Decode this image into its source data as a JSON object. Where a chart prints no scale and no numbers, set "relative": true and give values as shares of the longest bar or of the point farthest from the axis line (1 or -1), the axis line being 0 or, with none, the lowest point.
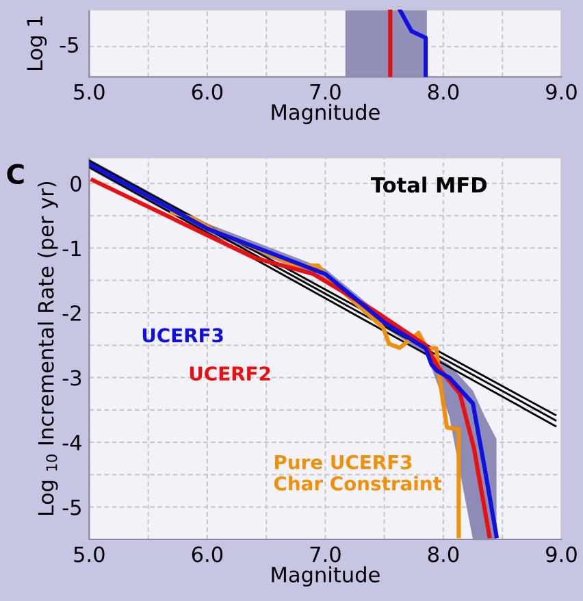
{
  "chart_data": [
    {
      "type": "line",
      "ylabel": "Log 1",
      "xlabel": "Magnitude",
      "xlim": [
        5.0,
        9.0
      ],
      "relative": true,
      "annotations": [
        "-5"
      ],
      "xticks": [
        {
          "value": 5.0,
          "label": "5.0"
        },
        {
          "value": 5.5,
          "label": null
        },
        {
          "value": 6.0,
          "label": "6.0"
        },
        {
          "value": 6.5,
          "label": null
        },
        {
          "value": 7.0,
          "label": "7.0"
        },
        {
          "value": 8.0,
          "label": "8.0"
        },
        {
          "value": 8.5,
          "label": null
        },
        {
          "value": 9.0,
          "label": "9.0"
        }
      ],
      "grid": true,
      "bands": [
        {
          "axis": "x",
          "from": 7.17,
          "to": 7.86,
          "color": "#9090b8"
        }
      ],
      "series": [
        {
          "color": "#e01010",
          "x": [
            7.55,
            7.55
          ],
          "values": [
            1,
            0
          ]
        },
        {
          "color": "#1010e0",
          "x": [
            7.63,
            7.73,
            7.85,
            7.85
          ],
          "values": [
            1,
            0.68,
            0.58,
            0
          ]
        }
      ]
    },
    {
      "type": "line",
      "title": "Total MFD",
      "ylabel": "Log $_{10}$ Incremental Rate (per yr)",
      "xlabel": "Magnitude",
      "annotations": [
        "C"
      ],
      "xlim": [
        5.0,
        9.0
      ],
      "ylim": [
        -5.5,
        0.4
      ],
      "xticks": [
        {
          "value": 5.0,
          "label": "5.0"
        },
        {
          "value": 5.5,
          "label": null
        },
        {
          "value": 6.0,
          "label": "6.0"
        },
        {
          "value": 6.5,
          "label": null
        },
        {
          "value": 7.0,
          "label": "7.0"
        },
        {
          "value": 7.5,
          "label": null
        },
        {
          "value": 8.0,
          "label": "8.0"
        },
        {
          "value": 8.5,
          "label": null
        },
        {
          "value": 9.0,
          "label": "9.0"
        }
      ],
      "yticks": [
        {
          "value": -5,
          "label": "-5"
        },
        {
          "value": -4.5,
          "label": null
        },
        {
          "value": -4,
          "label": "-4"
        },
        {
          "value": -3.5,
          "label": null
        },
        {
          "value": -3,
          "label": "-3"
        },
        {
          "value": -2.5,
          "label": null
        },
        {
          "value": -2,
          "label": "-2"
        },
        {
          "value": -1.5,
          "label": null
        },
        {
          "value": -1,
          "label": "-1"
        },
        {
          "value": -0.5,
          "label": null
        },
        {
          "value": 0,
          "label": "0"
        }
      ],
      "grid": true,
      "series": [
        {
          "color": "#000000",
          "x": [
            5.0,
            8.95
          ],
          "values": [
            0.35,
            -3.58
          ]
        },
        {
          "color": "#000000",
          "x": [
            5.0,
            8.95
          ],
          "values": [
            0.3,
            -3.66
          ]
        },
        {
          "color": "#000000",
          "x": [
            5.0,
            8.95
          ],
          "values": [
            0.25,
            -3.75
          ]
        },
        {
          "name": "Pure UCERF3\nChar Constraint",
          "color": "#f0900a",
          "x": [
            5.7,
            5.88,
            6.04,
            6.75,
            6.94,
            7.03,
            7.49,
            7.54,
            7.63,
            7.79,
            7.86,
            7.94,
            7.97,
            8.03,
            8.13,
            8.13
          ],
          "values": [
            -0.45,
            -0.54,
            -0.71,
            -1.27,
            -1.27,
            -1.48,
            -2.23,
            -2.48,
            -2.54,
            -2.31,
            -2.55,
            -2.55,
            -3.04,
            -3.77,
            -3.8,
            -5.45
          ]
        },
        {
          "name": "UCERF2",
          "color": "#e81010",
          "x": [
            5.03,
            6.4,
            6.9,
            7.4,
            7.85,
            7.96,
            8.14,
            8.26,
            8.39
          ],
          "values": [
            0.05,
            -1.15,
            -1.4,
            -1.95,
            -2.5,
            -2.85,
            -3.25,
            -4.1,
            -5.45
          ]
        },
        {
          "name": "UCERF3",
          "color": "#1010e0",
          "x": [
            5.0,
            6.0,
            7.0,
            7.5,
            7.85,
            7.9,
            7.95,
            8.05,
            8.25,
            8.35,
            8.45
          ],
          "values": [
            0.3,
            -0.7,
            -1.4,
            -2.15,
            -2.55,
            -2.8,
            -2.9,
            -3.0,
            -3.4,
            -4.4,
            -5.45
          ],
          "lower": [
            0.22,
            -0.78,
            -1.48,
            -2.23,
            -2.63,
            -2.85,
            -3.1,
            -3.6,
            -5.5,
            -5.5,
            -5.5
          ],
          "upper": [
            0.38,
            -0.62,
            -1.32,
            -2.07,
            -2.47,
            -2.65,
            -2.7,
            -2.8,
            -3.2,
            -3.6,
            -3.95
          ]
        }
      ]
    }
  ]
}
